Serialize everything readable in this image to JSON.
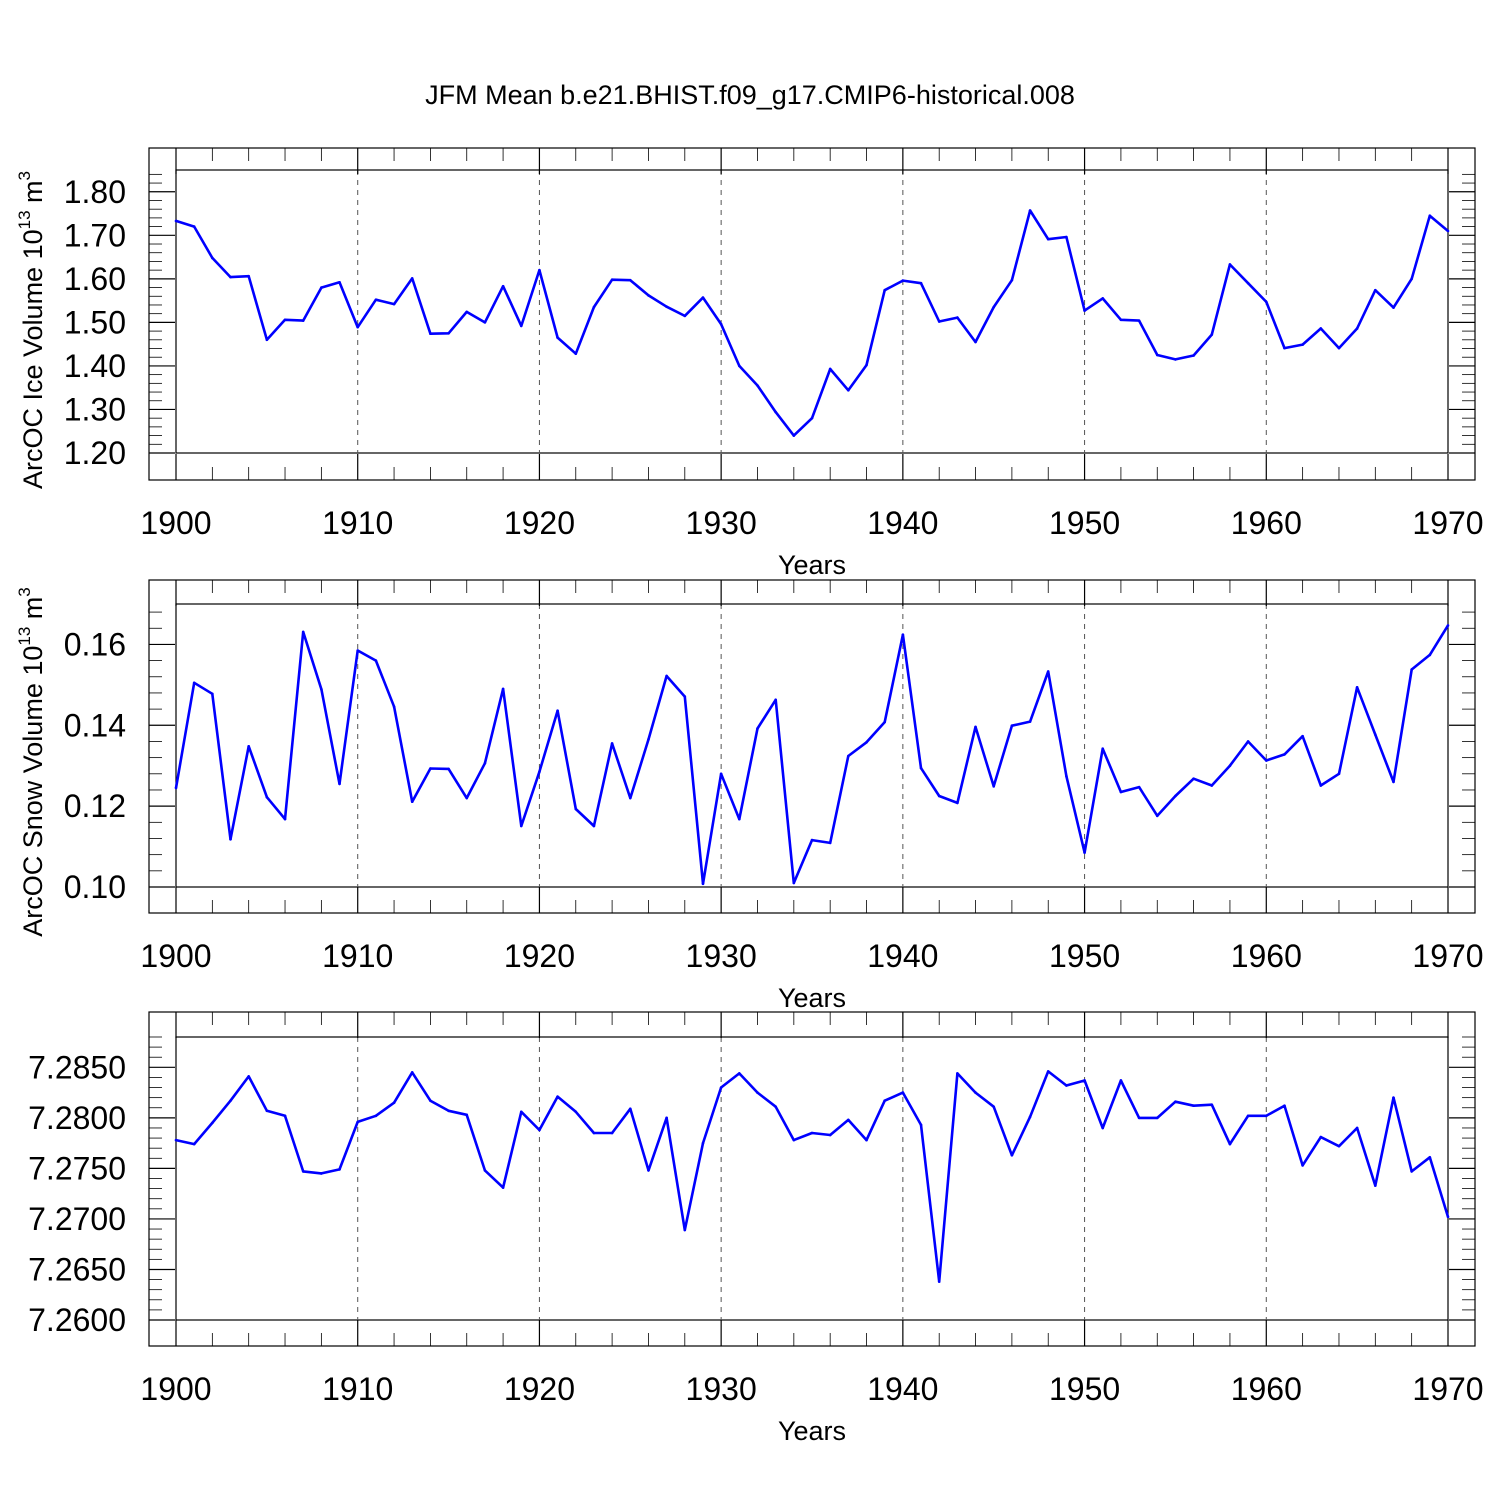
{
  "title": "JFM Mean b.e21.BHIST.f09_g17.CMIP6-historical.008",
  "chart_data": [
    {
      "type": "line",
      "name": "ice-volume",
      "ylabel": "ArcOC Ice Volume 10",
      "ylabel_sup": "13",
      "ylabel_unit": " m",
      "ylabel_unit_sup": "3",
      "xlabel": "Years",
      "xlim": [
        1900,
        1970
      ],
      "ylim": [
        1.2,
        1.85
      ],
      "xticks": [
        1900,
        1910,
        1920,
        1930,
        1940,
        1950,
        1960,
        1970
      ],
      "xtick_labels": [
        "1900",
        "1910",
        "1920",
        "1930",
        "1940",
        "1950",
        "1960",
        "1970"
      ],
      "yticks": [
        1.2,
        1.3,
        1.4,
        1.5,
        1.6,
        1.7,
        1.8
      ],
      "ytick_labels": [
        "1.20",
        "1.30",
        "1.40",
        "1.50",
        "1.60",
        "1.70",
        "1.80"
      ],
      "color": "#0000ff",
      "x_start": 1900,
      "values": [
        1.733,
        1.72,
        1.648,
        1.604,
        1.606,
        1.46,
        1.506,
        1.504,
        1.58,
        1.592,
        1.489,
        1.552,
        1.542,
        1.601,
        1.474,
        1.475,
        1.524,
        1.5,
        1.583,
        1.492,
        1.62,
        1.465,
        1.428,
        1.535,
        1.598,
        1.597,
        1.562,
        1.536,
        1.515,
        1.557,
        1.496,
        1.4,
        1.355,
        1.294,
        1.24,
        1.28,
        1.393,
        1.344,
        1.402,
        1.574,
        1.596,
        1.59,
        1.502,
        1.511,
        1.455,
        1.535,
        1.597,
        1.757,
        1.691,
        1.696,
        1.527,
        1.555,
        1.506,
        1.504,
        1.425,
        1.415,
        1.424,
        1.472,
        1.633,
        1.59,
        1.547,
        1.441,
        1.449,
        1.486,
        1.441,
        1.486,
        1.574,
        1.534,
        1.6,
        1.745,
        1.71
      ]
    },
    {
      "type": "line",
      "name": "snow-volume",
      "ylabel": "ArcOC Snow Volume 10",
      "ylabel_sup": "13",
      "ylabel_unit": " m",
      "ylabel_unit_sup": "3",
      "xlabel": "Years",
      "xlim": [
        1900,
        1970
      ],
      "ylim": [
        0.1,
        0.17
      ],
      "xticks": [
        1900,
        1910,
        1920,
        1930,
        1940,
        1950,
        1960,
        1970
      ],
      "xtick_labels": [
        "1900",
        "1910",
        "1920",
        "1930",
        "1940",
        "1950",
        "1960",
        "1970"
      ],
      "yticks": [
        0.1,
        0.12,
        0.14,
        0.16
      ],
      "ytick_labels": [
        "0.10",
        "0.12",
        "0.14",
        "0.16"
      ],
      "color": "#0000ff",
      "x_start": 1900,
      "values": [
        0.1245,
        0.1505,
        0.1478,
        0.1118,
        0.1348,
        0.1222,
        0.1168,
        0.1631,
        0.1489,
        0.1255,
        0.1585,
        0.156,
        0.1446,
        0.1211,
        0.1293,
        0.1292,
        0.122,
        0.1306,
        0.149,
        0.1151,
        0.1285,
        0.1436,
        0.1193,
        0.1151,
        0.1355,
        0.122,
        0.1365,
        0.1522,
        0.1471,
        0.1008,
        0.128,
        0.1168,
        0.1392,
        0.1463,
        0.101,
        0.1116,
        0.1109,
        0.1324,
        0.1358,
        0.1408,
        0.1624,
        0.1294,
        0.1225,
        0.1208,
        0.1396,
        0.1249,
        0.1399,
        0.1409,
        0.1533,
        0.1274,
        0.1085,
        0.1342,
        0.1235,
        0.1247,
        0.1176,
        0.1225,
        0.1268,
        0.1251,
        0.13,
        0.136,
        0.1313,
        0.1328,
        0.1373,
        0.1251,
        0.128,
        0.1494,
        0.1377,
        0.126,
        0.1538,
        0.1574,
        0.1647
      ]
    },
    {
      "type": "line",
      "name": "third-series",
      "ylabel": "",
      "xlabel": "Years",
      "xlim": [
        1900,
        1970
      ],
      "ylim": [
        7.26,
        7.288
      ],
      "xticks": [
        1900,
        1910,
        1920,
        1930,
        1940,
        1950,
        1960,
        1970
      ],
      "xtick_labels": [
        "1900",
        "1910",
        "1920",
        "1930",
        "1940",
        "1950",
        "1960",
        "1970"
      ],
      "yticks": [
        7.26,
        7.265,
        7.27,
        7.275,
        7.28,
        7.285
      ],
      "ytick_labels": [
        "7.2600",
        "7.2650",
        "7.2700",
        "7.2750",
        "7.2800",
        "7.2850"
      ],
      "color": "#0000ff",
      "x_start": 1900,
      "values": [
        7.2778,
        7.2774,
        7.2795,
        7.2817,
        7.2841,
        7.2807,
        7.2802,
        7.2747,
        7.2745,
        7.2749,
        7.2796,
        7.2802,
        7.2815,
        7.2845,
        7.2817,
        7.2807,
        7.2803,
        7.2748,
        7.2731,
        7.2806,
        7.2788,
        7.2821,
        7.2806,
        7.2785,
        7.2785,
        7.2809,
        7.2748,
        7.28,
        7.2689,
        7.2775,
        7.283,
        7.2844,
        7.2825,
        7.2811,
        7.2778,
        7.2785,
        7.2783,
        7.2798,
        7.2778,
        7.2817,
        7.2825,
        7.2793,
        7.2638,
        7.2844,
        7.2825,
        7.2811,
        7.2763,
        7.2801,
        7.2846,
        7.2832,
        7.2837,
        7.279,
        7.2837,
        7.28,
        7.28,
        7.2816,
        7.2812,
        7.2813,
        7.2774,
        7.2802,
        7.2802,
        7.2812,
        7.2753,
        7.2781,
        7.2772,
        7.279,
        7.2733,
        7.282,
        7.2747,
        7.2761,
        7.2702
      ]
    }
  ]
}
